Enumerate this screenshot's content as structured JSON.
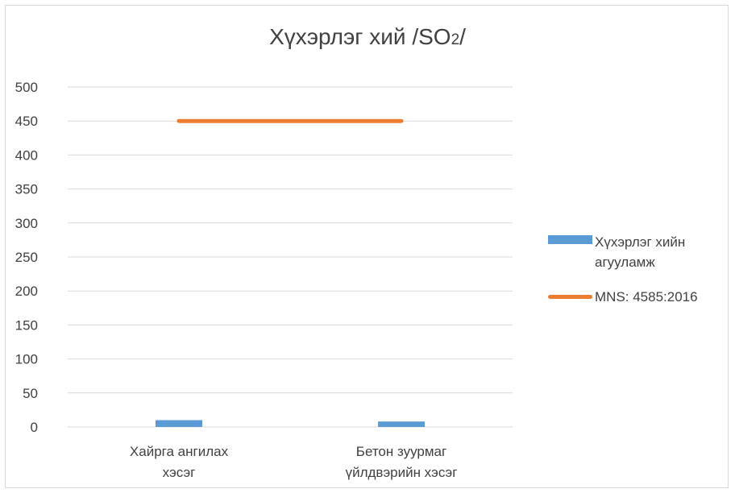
{
  "title_main": "Хүхэрлэг хий /SO",
  "title_sub": "2",
  "title_tail": "/",
  "colors": {
    "bar": "#5b9bd5",
    "line": "#ed7d31",
    "grid": "#d9d9d9",
    "text": "#404040"
  },
  "legend": {
    "bar_label": "Хүхэрлэг хийн агууламж",
    "line_label": "MNS: 4585:2016"
  },
  "chart_data": {
    "type": "bar",
    "categories": [
      [
        "Хайрга ангилах",
        "хэсэг"
      ],
      [
        "Бетон зуурмаг",
        "үйлдвэрийн хэсэг"
      ]
    ],
    "series": [
      {
        "name": "Хүхэрлэг хийн агууламж",
        "type": "bar",
        "values": [
          10,
          8
        ]
      },
      {
        "name": "MNS: 4585:2016",
        "type": "line",
        "values": [
          450,
          450
        ]
      }
    ],
    "ylim": [
      0,
      500
    ],
    "yticks": [
      0,
      50,
      100,
      150,
      200,
      250,
      300,
      350,
      400,
      450,
      500
    ],
    "grid": true,
    "legend_position": "right"
  }
}
